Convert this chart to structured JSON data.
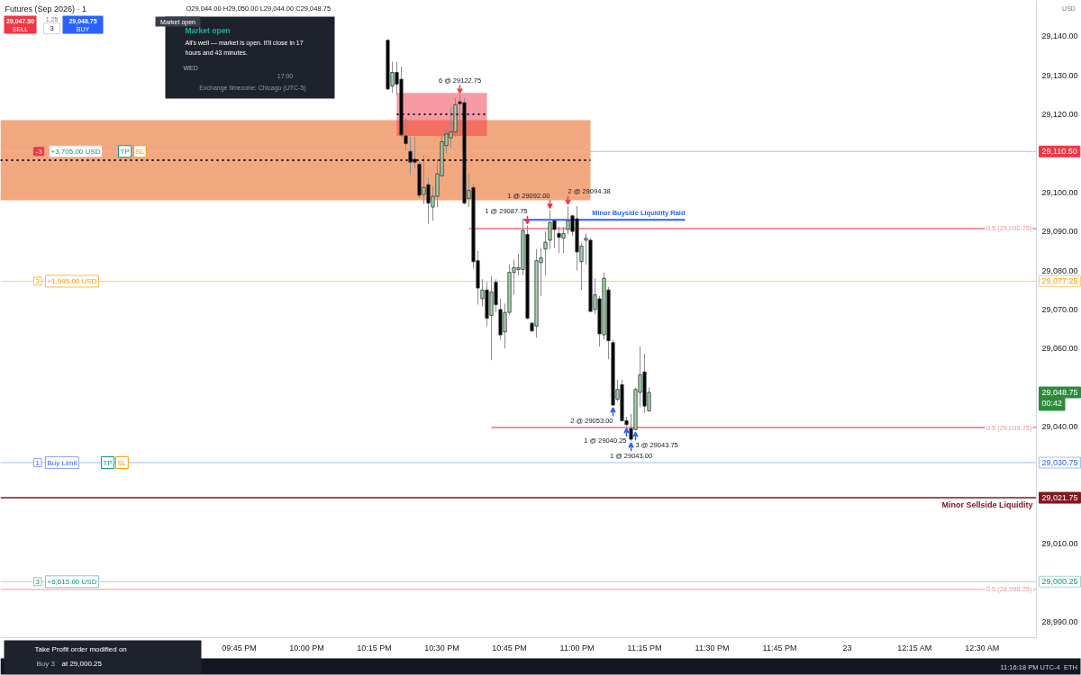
{
  "chart_data": {
    "type": "candlestick",
    "title": "Futures (Sep 2026) · 1",
    "subtitle": "O29,044.00 H29,050.00 L29,044.00 C29,048.75",
    "xlim": [
      "2026-07-22T20:52",
      "2026-07-23T00:42"
    ],
    "ylim": [
      28985.9,
      29149.2
    ],
    "xticks": [
      {
        "value": "2026-07-22T21:45",
        "label": "09:45 PM"
      },
      {
        "value": "2026-07-22T22:00",
        "label": "10:00 PM"
      },
      {
        "value": "2026-07-22T22:15",
        "label": "10:15 PM"
      },
      {
        "value": "2026-07-22T22:30",
        "label": "10:30 PM"
      },
      {
        "value": "2026-07-22T22:45",
        "label": "10:45 PM"
      },
      {
        "value": "2026-07-22T23:00",
        "label": "11:00 PM"
      },
      {
        "value": "2026-07-22T23:15",
        "label": "11:15 PM"
      },
      {
        "value": "2026-07-22T23:30",
        "label": "11:30 PM"
      },
      {
        "value": "2026-07-22T23:45",
        "label": "11:45 PM"
      },
      {
        "value": "2026-07-23T00:00",
        "label": "23"
      },
      {
        "value": "2026-07-23T00:15",
        "label": "12:15 AM"
      },
      {
        "value": "2026-07-23T00:30",
        "label": "12:30 AM"
      }
    ],
    "yticks": [
      {
        "value": 28990,
        "label": "28,990.00"
      },
      {
        "value": 29010,
        "label": "29,010.00"
      },
      {
        "value": 29040,
        "label": "29,040.00"
      },
      {
        "value": 29060,
        "label": "29,060.00"
      },
      {
        "value": 29070,
        "label": "29,070.00"
      },
      {
        "value": 29080,
        "label": "29,080.00"
      },
      {
        "value": 29090,
        "label": "29,090.00"
      },
      {
        "value": 29100,
        "label": "29,100.00"
      },
      {
        "value": 29120,
        "label": "29,120.00"
      },
      {
        "value": 29130,
        "label": "29,130.00"
      },
      {
        "value": 29140,
        "label": "29,140.00"
      }
    ],
    "grid": false,
    "x": [
      "2026-07-22T22:18",
      "2026-07-22T22:19",
      "2026-07-22T22:20",
      "2026-07-22T22:21",
      "2026-07-22T22:22",
      "2026-07-22T22:23",
      "2026-07-22T22:24",
      "2026-07-22T22:25",
      "2026-07-22T22:26",
      "2026-07-22T22:27",
      "2026-07-22T22:28",
      "2026-07-22T22:29",
      "2026-07-22T22:30",
      "2026-07-22T22:31",
      "2026-07-22T22:32",
      "2026-07-22T22:33",
      "2026-07-22T22:34",
      "2026-07-22T22:35",
      "2026-07-22T22:36",
      "2026-07-22T22:37",
      "2026-07-22T22:38",
      "2026-07-22T22:39",
      "2026-07-22T22:40",
      "2026-07-22T22:41",
      "2026-07-22T22:42",
      "2026-07-22T22:43",
      "2026-07-22T22:44",
      "2026-07-22T22:45",
      "2026-07-22T22:46",
      "2026-07-22T22:47",
      "2026-07-22T22:48",
      "2026-07-22T22:49",
      "2026-07-22T22:50",
      "2026-07-22T22:51",
      "2026-07-22T22:52",
      "2026-07-22T22:53",
      "2026-07-22T22:54",
      "2026-07-22T22:55",
      "2026-07-22T22:56",
      "2026-07-22T22:57",
      "2026-07-22T22:58",
      "2026-07-22T22:59",
      "2026-07-22T23:00",
      "2026-07-22T23:01",
      "2026-07-22T23:02",
      "2026-07-22T23:03",
      "2026-07-22T23:04",
      "2026-07-22T23:05",
      "2026-07-22T23:06",
      "2026-07-22T23:07",
      "2026-07-22T23:08",
      "2026-07-22T23:09",
      "2026-07-22T23:10",
      "2026-07-22T23:11",
      "2026-07-22T23:12",
      "2026-07-22T23:13",
      "2026-07-22T23:14",
      "2026-07-22T23:15",
      "2026-07-22T23:16"
    ],
    "ohlc": [
      [
        29139.0,
        29139.25,
        29126.25,
        29126.5
      ],
      [
        29127.25,
        29133.5,
        29125.5,
        29130.75
      ],
      [
        29130.75,
        29133.5,
        29125.0,
        29127.75
      ],
      [
        29129.0,
        29132.25,
        29114.0,
        29114.75
      ],
      [
        29114.5,
        29119.0,
        29110.75,
        29112.5
      ],
      [
        29110.5,
        29114.25,
        29104.5,
        29107.75
      ],
      [
        29108.5,
        29114.25,
        29106.25,
        29107.75
      ],
      [
        29107.25,
        29108.0,
        29098.5,
        29099.25
      ],
      [
        29099.5,
        29109.5,
        29097.0,
        29101.25
      ],
      [
        29102.0,
        29103.75,
        29092.0,
        29097.25
      ],
      [
        29096.25,
        29101.5,
        29092.75,
        29099.0
      ],
      [
        29099.0,
        29108.5,
        29096.25,
        29104.75
      ],
      [
        29104.25,
        29114.5,
        29104.0,
        29113.0
      ],
      [
        29112.0,
        29116.0,
        29110.0,
        29115.0
      ],
      [
        29114.0,
        29122.0,
        29111.5,
        29115.5
      ],
      [
        29115.5,
        29124.25,
        29114.25,
        29122.5
      ],
      [
        29123.25,
        29125.0,
        29117.0,
        29122.75
      ],
      [
        29123.0,
        29124.25,
        29097.0,
        29097.25
      ],
      [
        29098.5,
        29104.75,
        29096.25,
        29100.5
      ],
      [
        29101.25,
        29102.25,
        29080.5,
        29082.25
      ],
      [
        29082.5,
        29085.0,
        29071.25,
        29075.5
      ],
      [
        29072.75,
        29077.75,
        29070.75,
        29075.0
      ],
      [
        29075.0,
        29077.0,
        29065.75,
        29067.75
      ],
      [
        29068.5,
        29078.5,
        29057.0,
        29074.5
      ],
      [
        29077.0,
        29077.75,
        29069.25,
        29071.25
      ],
      [
        29070.0,
        29072.75,
        29062.25,
        29063.5
      ],
      [
        29064.25,
        29071.5,
        29060.0,
        29069.25
      ],
      [
        29069.25,
        29081.5,
        29068.5,
        29079.5
      ],
      [
        29079.5,
        29082.75,
        29073.75,
        29080.75
      ],
      [
        29080.25,
        29084.25,
        29078.75,
        29080.75
      ],
      [
        29080.25,
        29093.0,
        29078.75,
        29090.25
      ],
      [
        29089.25,
        29091.5,
        29067.5,
        29067.75
      ],
      [
        29066.5,
        29066.75,
        29064.25,
        29064.5
      ],
      [
        29065.75,
        29085.5,
        29062.75,
        29082.5
      ],
      [
        29082.0,
        29085.75,
        29073.5,
        29083.25
      ],
      [
        29085.5,
        29090.0,
        29078.75,
        29087.25
      ],
      [
        29087.75,
        29095.5,
        29085.5,
        29092.25
      ],
      [
        29092.75,
        29093.0,
        29085.75,
        29090.5
      ],
      [
        29089.5,
        29091.25,
        29084.5,
        29088.5
      ],
      [
        29088.25,
        29091.25,
        29084.5,
        29089.5
      ],
      [
        29090.5,
        29096.5,
        29089.25,
        29092.75
      ],
      [
        29094.0,
        29094.25,
        29088.75,
        29090.0
      ],
      [
        29093.25,
        29096.5,
        29080.0,
        29084.75
      ],
      [
        29082.25,
        29087.0,
        29075.0,
        29086.25
      ],
      [
        29087.75,
        29089.5,
        29081.5,
        29088.25
      ],
      [
        29087.75,
        29088.25,
        29069.5,
        29069.5
      ],
      [
        29070.0,
        29078.0,
        29068.75,
        29073.75
      ],
      [
        29072.75,
        29073.5,
        29060.5,
        29063.75
      ],
      [
        29063.5,
        29079.5,
        29062.25,
        29078.0
      ],
      [
        29075.0,
        29075.75,
        29057.25,
        29062.0
      ],
      [
        29061.5,
        29062.25,
        29045.25,
        29045.5
      ],
      [
        29047.0,
        29052.0,
        29046.5,
        29049.5
      ],
      [
        29050.75,
        29052.0,
        29041.25,
        29041.5
      ],
      [
        29041.5,
        29042.5,
        29040.0,
        29040.5
      ],
      [
        29039.5,
        29043.25,
        29036.25,
        29036.75
      ],
      [
        29039.25,
        29050.0,
        29039.0,
        29049.5
      ],
      [
        29048.75,
        29060.5,
        29045.0,
        29053.25
      ],
      [
        29054.0,
        29058.75,
        29043.5,
        29045.25
      ],
      [
        29044.0,
        29050.0,
        29044.0,
        29048.75
      ]
    ],
    "colors": [
      "#000000",
      "#a5d6a7",
      "#000000",
      "#000000",
      "#000000",
      "#000000",
      "#000000",
      "#000000",
      "#a5d6a7",
      "#000000",
      "#a5d6a7",
      "#a5d6a7",
      "#a5d6a7",
      "#a5d6a7",
      "#a5d6a7",
      "#a5d6a7",
      "#000000",
      "#000000",
      "#a5d6a7",
      "#000000",
      "#000000",
      "#a5d6a7",
      "#000000",
      "#a5d6a7",
      "#000000",
      "#000000",
      "#a5d6a7",
      "#a5d6a7",
      "#a5d6a7",
      "#a5d6a7",
      "#a5d6a7",
      "#000000",
      "#000000",
      "#a5d6a7",
      "#a5d6a7",
      "#a5d6a7",
      "#a5d6a7",
      "#000000",
      "#000000",
      "#a5d6a7",
      "#a5d6a7",
      "#000000",
      "#000000",
      "#a5d6a7",
      "#a5d6a7",
      "#000000",
      "#a5d6a7",
      "#000000",
      "#a5d6a7",
      "#000000",
      "#000000",
      "#a5d6a7",
      "#000000",
      "#000000",
      "#000000",
      "#a5d6a7",
      "#a5d6a7",
      "#000000",
      "#a5d6a7"
    ],
    "series": [
      {
        "type": "line",
        "x": [
          "2026-07-22T20:52",
          "2026-07-22T23:03"
        ],
        "values": [
          29108.25,
          29108.25
        ],
        "lower": [
          29098.0,
          29098.0
        ],
        "upper": [
          29118.5,
          29118.5
        ],
        "color": "#000000",
        "line_style": "dotted"
      },
      {
        "type": "line",
        "x": [
          "2026-07-22T22:20",
          "2026-07-22T22:40"
        ],
        "values": [
          29120.0,
          29120.0
        ],
        "lower": [
          29114.5,
          29114.5
        ],
        "upper": [
          29125.5,
          29125.5
        ],
        "color": "#131722",
        "line_style": "dotted"
      },
      {
        "type": "line",
        "name": "0.5 (29,090.75)",
        "x": [
          "2026-07-22T22:36",
          "2026-07-23T00:42"
        ],
        "values": [
          29090.75,
          29090.75
        ],
        "color": "#f2939c"
      },
      {
        "type": "line",
        "name": "0.5 (29,039.75)",
        "x": [
          "2026-07-22T22:41",
          "2026-07-23T00:42"
        ],
        "values": [
          29039.75,
          29039.75
        ],
        "color": "#f2939c"
      },
      {
        "type": "line",
        "name": "Minor Buyside Liquidity Raid",
        "x": [
          "2026-07-22T22:48",
          "2026-07-22T23:24"
        ],
        "values": [
          29093.0,
          29093.0
        ],
        "color": "#2962ff"
      }
    ],
    "ref_lines": [
      {
        "axis": "y",
        "value": 29110.5,
        "color": "#f7a8ae"
      },
      {
        "axis": "y",
        "value": 29077.25,
        "color": "#ffcc80"
      },
      {
        "axis": "y",
        "value": 29030.75,
        "color": "#a8bdf5"
      },
      {
        "axis": "y",
        "value": 29021.75,
        "color": "#801922",
        "label": "Minor Sellside Liquidity"
      },
      {
        "axis": "y",
        "value": 29000.25,
        "color": "#a5d6c8"
      },
      {
        "axis": "y",
        "value": 28998.25,
        "color": "#f2939c",
        "label": "0.5 (28,998.25)"
      }
    ],
    "annotations": [
      "29,047.50",
      "SELL",
      "1.25",
      "3",
      "29,048.75",
      "BUY",
      "Market open",
      "Market open",
      "All's well — market is open. It'll close in 17",
      "hours and 43 minutes.",
      "WED",
      "17:00",
      "Exchange timezone: Chicago (UTC-5)",
      "Take Profit order modified on",
      "Buy 3",
      "at 29,000.25",
      "11:16:18 PM UTC-4",
      "ETH",
      "USD",
      "-3",
      "+3,705.00 USD",
      "TP",
      "SL",
      "3",
      "+1,995.00 USD",
      "1",
      "Buy Limit",
      "TP",
      "SL",
      "3",
      "+6,615.00 USD",
      "29,110.50",
      "29,077.25",
      "29,048.75",
      "00:42",
      "29,030.75",
      "29,021.75",
      "29,000.25",
      {
        "text": "6 @ 29122.75",
        "x": "2026-07-22T22:34",
        "y": 29125.0
      },
      {
        "text": "1 @ 29087.75",
        "x": "2026-07-22T22:49",
        "y": 29091.5
      },
      {
        "text": "1 @ 29092.00",
        "x": "2026-07-22T22:54",
        "y": 29095.5
      },
      {
        "text": "2 @ 29094.38",
        "x": "2026-07-22T22:58",
        "y": 29096.5
      },
      {
        "text": "2 @ 29053.00",
        "x": "2026-07-22T23:08",
        "y": 29045.25
      },
      {
        "text": "1 @ 29043.00",
        "x": "2026-07-22T23:12",
        "y": 29036.25
      },
      {
        "text": "3 @ 29043.75",
        "x": "2026-07-22T23:13",
        "y": 29039.0
      },
      {
        "text": "1 @ 29040.25",
        "x": "2026-07-22T23:11",
        "y": 29040.0
      }
    ]
  }
}
